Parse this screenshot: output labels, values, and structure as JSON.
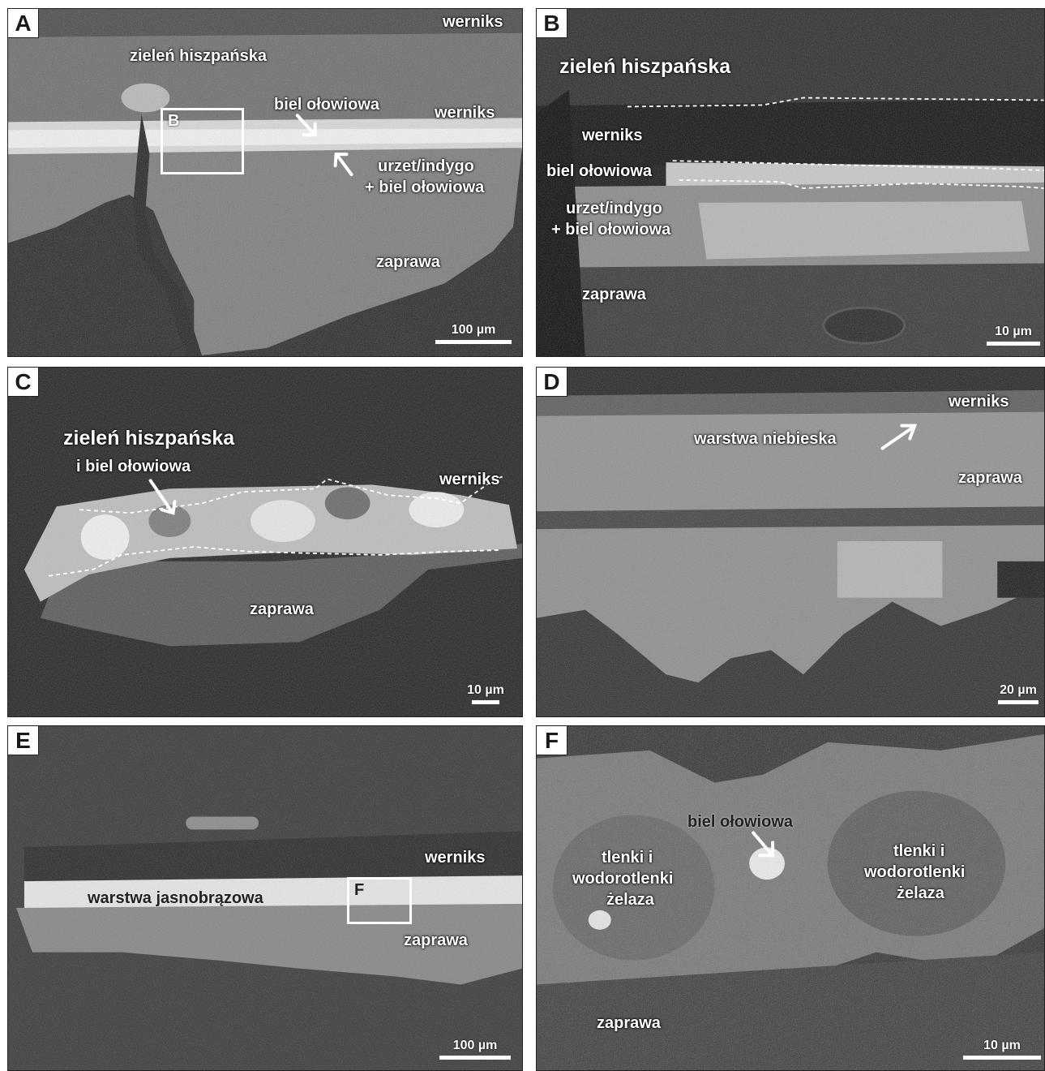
{
  "panels": {
    "a": {
      "id": "A",
      "labels": {
        "werniks_top": "werniks",
        "zielen": "zieleń hiszpańska",
        "biel": "biel ołowiowa",
        "werniks": "werniks",
        "urzet_1": "urzet/indygo",
        "urzet_2": "+ biel ołowiowa",
        "zaprawa": "zaprawa"
      },
      "inset_label": "B",
      "scale": "100 µm"
    },
    "b": {
      "id": "B",
      "labels": {
        "zielen": "zieleń hiszpańska",
        "werniks": "werniks",
        "biel": "biel ołowiowa",
        "urzet_1": "urzet/indygo",
        "urzet_2": "+ biel ołowiowa",
        "zaprawa": "zaprawa"
      },
      "scale": "10 µm"
    },
    "c": {
      "id": "C",
      "labels": {
        "zielen": "zieleń hiszpańska",
        "biel": "i biel ołowiowa",
        "werniks": "werniks",
        "zaprawa": "zaprawa"
      },
      "scale": "10 µm"
    },
    "d": {
      "id": "D",
      "labels": {
        "werniks": "werniks",
        "niebieska": "warstwa niebieska",
        "zaprawa": "zaprawa"
      },
      "scale": "20 µm"
    },
    "e": {
      "id": "E",
      "labels": {
        "werniks": "werniks",
        "jasnobrazowa": "warstwa jasnobrązowa",
        "zaprawa": "zaprawa"
      },
      "inset_label": "F",
      "scale": "100 µm"
    },
    "f": {
      "id": "F",
      "labels": {
        "biel": "biel ołowiowa",
        "tlenki_l1": "tlenki i",
        "tlenki_l2": "wodorotlenki",
        "tlenki_l3": "żelaza",
        "tlenki_r1": "tlenki i",
        "tlenki_r2": "wodorotlenki",
        "tlenki_r3": "żelaza",
        "zaprawa": "zaprawa"
      },
      "scale": "10 µm"
    }
  }
}
